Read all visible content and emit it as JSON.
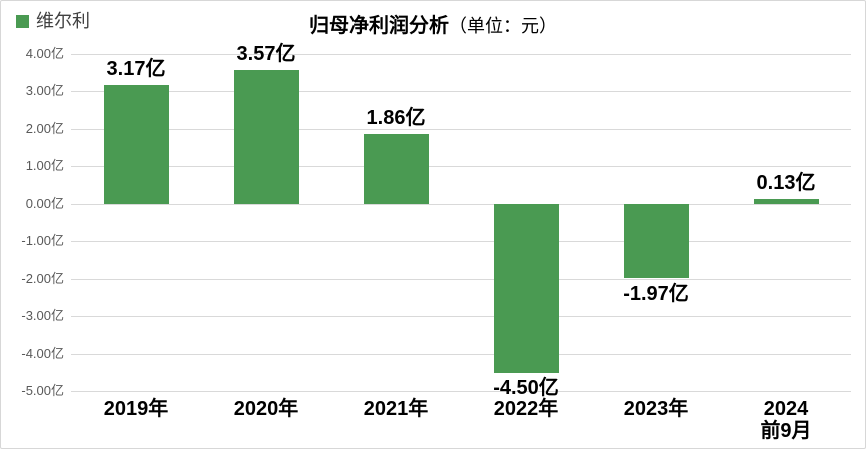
{
  "legend": {
    "label": "维尔利",
    "swatch_color": "#4a9a52"
  },
  "title": {
    "text": "归母净利润分析",
    "unit": "（单位：元）"
  },
  "chart_data": {
    "type": "bar",
    "title": "归母净利润分析（单位：元）",
    "series_name": "维尔利",
    "categories": [
      "2019年",
      "2020年",
      "2021年",
      "2022年",
      "2023年",
      "2024\n前9月"
    ],
    "values": [
      3.17,
      3.57,
      1.86,
      -4.5,
      -1.97,
      0.13
    ],
    "data_labels": [
      "3.17亿",
      "3.57亿",
      "1.86亿",
      "-4.50亿",
      "-1.97亿",
      "0.13亿"
    ],
    "unit": "亿",
    "xlabel": "",
    "ylabel": "",
    "ylim": [
      -5,
      4
    ],
    "y_ticks": [
      {
        "value": 4,
        "label": "4.00亿"
      },
      {
        "value": 3,
        "label": "3.00亿"
      },
      {
        "value": 2,
        "label": "2.00亿"
      },
      {
        "value": 1,
        "label": "1.00亿"
      },
      {
        "value": 0,
        "label": "0.00亿"
      },
      {
        "value": -1,
        "label": "-1.00亿"
      },
      {
        "value": -2,
        "label": "-2.00亿"
      },
      {
        "value": -3,
        "label": "-3.00亿"
      },
      {
        "value": -4,
        "label": "-4.00亿"
      },
      {
        "value": -5,
        "label": "-5.00亿"
      }
    ],
    "grid": true,
    "bar_color": "#4a9a52",
    "gridline_color": "#d9d9d9",
    "legend_position": "top-left"
  }
}
